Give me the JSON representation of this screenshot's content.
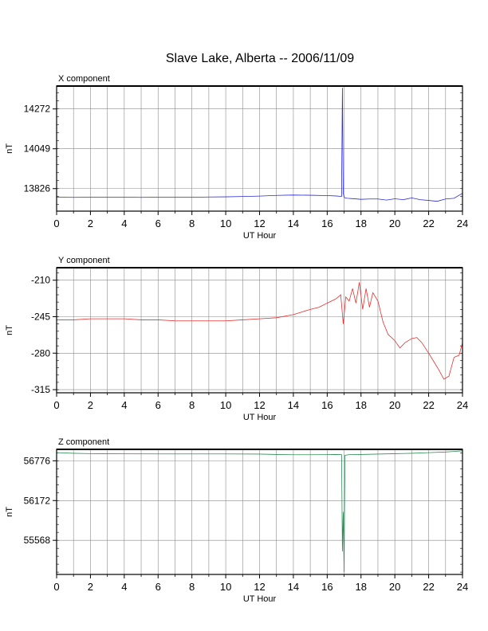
{
  "title": "Slave Lake, Alberta -- 2006/11/09",
  "chart_data": [
    {
      "type": "line",
      "panel_title": "X component",
      "xlabel": "UT Hour",
      "ylabel": "nT",
      "xlim": [
        0,
        24
      ],
      "ylim": [
        13700,
        14400
      ],
      "x_ticks": [
        0,
        2,
        4,
        6,
        8,
        10,
        12,
        14,
        16,
        18,
        20,
        22,
        24
      ],
      "y_ticks": [
        13826,
        14049,
        14272
      ],
      "grid": true,
      "color": "#2b2bd6",
      "series": [
        {
          "x": [
            0,
            1,
            2,
            3,
            4,
            5,
            6,
            7,
            8,
            9,
            10,
            11,
            12,
            13,
            14,
            15,
            16,
            16.5,
            16.85,
            16.9,
            16.95,
            17.0,
            17.05,
            17.2,
            17.5,
            18,
            18.5,
            19,
            19.5,
            20,
            20.5,
            21,
            21.5,
            22,
            22.5,
            23,
            23.5,
            24
          ],
          "y": [
            13778,
            13777,
            13778,
            13778,
            13778,
            13777,
            13778,
            13778,
            13778,
            13779,
            13780,
            13782,
            13784,
            13788,
            13790,
            13789,
            13787,
            13785,
            13782,
            14390,
            13800,
            13778,
            13774,
            13772,
            13770,
            13766,
            13768,
            13768,
            13762,
            13769,
            13764,
            13774,
            13764,
            13760,
            13755,
            13768,
            13772,
            13800
          ]
        }
      ]
    },
    {
      "type": "line",
      "panel_title": "Y component",
      "xlabel": "UT Hour",
      "ylabel": "nT",
      "xlim": [
        0,
        24
      ],
      "ylim": [
        -318,
        -198
      ],
      "x_ticks": [
        0,
        2,
        4,
        6,
        8,
        10,
        12,
        14,
        16,
        18,
        20,
        22,
        24
      ],
      "y_ticks": [
        -210,
        -245,
        -280,
        -315
      ],
      "grid": true,
      "color": "#e53030",
      "series": [
        {
          "x": [
            0,
            1,
            2,
            3,
            4,
            5,
            6,
            7,
            8,
            9,
            10,
            11,
            12,
            13,
            14,
            15,
            15.5,
            16,
            16.5,
            16.8,
            16.95,
            17.1,
            17.3,
            17.5,
            17.7,
            17.9,
            18.1,
            18.3,
            18.5,
            18.7,
            19,
            19.3,
            19.6,
            20,
            20.3,
            20.6,
            21,
            21.3,
            21.6,
            22,
            22.3,
            22.6,
            22.9,
            23.2,
            23.5,
            23.8,
            24
          ],
          "y": [
            -248,
            -248,
            -247,
            -247,
            -247,
            -248,
            -248,
            -249,
            -249,
            -249,
            -249,
            -248,
            -247,
            -246,
            -243,
            -238,
            -236,
            -232,
            -228,
            -224,
            -252,
            -226,
            -230,
            -218,
            -232,
            -212,
            -238,
            -218,
            -236,
            -222,
            -230,
            -250,
            -262,
            -268,
            -275,
            -270,
            -266,
            -265,
            -270,
            -280,
            -288,
            -296,
            -305,
            -302,
            -284,
            -282,
            -270
          ]
        }
      ]
    },
    {
      "type": "line",
      "panel_title": "Z component",
      "xlabel": "UT Hour",
      "ylabel": "nT",
      "xlim": [
        0,
        24
      ],
      "ylim": [
        55050,
        56950
      ],
      "x_ticks": [
        0,
        2,
        4,
        6,
        8,
        10,
        12,
        14,
        16,
        18,
        20,
        22,
        24
      ],
      "y_ticks": [
        55568,
        56172,
        56776
      ],
      "grid": true,
      "color": "#2e8b57",
      "series": [
        {
          "x": [
            0,
            1,
            2,
            4,
            6,
            8,
            10,
            12,
            13,
            14,
            15,
            16,
            16.5,
            16.85,
            16.9,
            16.95,
            17.0,
            17.05,
            17.3,
            18,
            18.5,
            19,
            20,
            21,
            22,
            23,
            23.5,
            24
          ],
          "y": [
            56900,
            56890,
            56885,
            56882,
            56880,
            56880,
            56880,
            56878,
            56872,
            56868,
            56868,
            56870,
            56872,
            56870,
            55400,
            56000,
            55085,
            56860,
            56870,
            56872,
            56875,
            56878,
            56884,
            56890,
            56900,
            56910,
            56918,
            56928
          ]
        }
      ]
    }
  ]
}
